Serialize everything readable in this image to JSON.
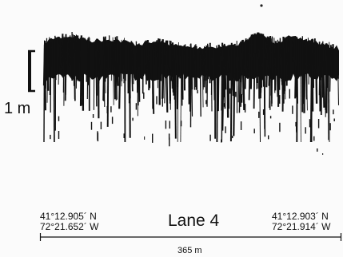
{
  "scale_bar": {
    "label": "1 m"
  },
  "lane": {
    "title": "Lane 4"
  },
  "start_position": {
    "latitude": "41°12.905´ N",
    "longitude": "72°21.652´ W"
  },
  "end_position": {
    "latitude": "41°12.903´ N",
    "longitude": "72°21.914´ W"
  },
  "transect": {
    "length_label": "365 m"
  },
  "colors": {
    "echo": "#111111",
    "background": "#fbfbfb"
  }
}
